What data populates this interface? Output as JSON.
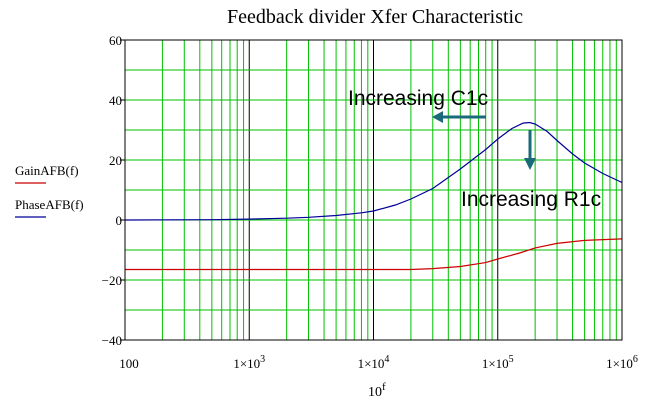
{
  "chart_data": {
    "type": "line",
    "title": "Feedback divider Xfer Characteristic",
    "xlabel": "10",
    "xlabel_superscript": "f",
    "x_scale": "log",
    "xlim": [
      100,
      1000000
    ],
    "ylim": [
      -40,
      60
    ],
    "grid": true,
    "grid_color": "#00c000",
    "x_tick_labels": [
      {
        "value": 100,
        "base": "100",
        "exp": ""
      },
      {
        "value": 1000,
        "base": "1×10",
        "exp": "3"
      },
      {
        "value": 10000,
        "base": "1×10",
        "exp": "4"
      },
      {
        "value": 100000,
        "base": "1×10",
        "exp": "5"
      },
      {
        "value": 1000000,
        "base": "1×10",
        "exp": "6"
      }
    ],
    "y_ticks": [
      60,
      40,
      20,
      0,
      -20,
      -40
    ],
    "y_tick_labels": [
      "60",
      "40",
      "20",
      "0",
      "−20",
      "−40"
    ],
    "legend_placement": "left",
    "series": [
      {
        "name": "GainAFB(f)",
        "color": "#cc0000",
        "x": [
          100,
          1000,
          10000,
          20000,
          30000,
          50000,
          80000,
          100000,
          150000,
          200000,
          300000,
          500000,
          1000000
        ],
        "y": [
          -16.5,
          -16.5,
          -16.5,
          -16.5,
          -16.2,
          -15.5,
          -14.2,
          -13.0,
          -11.0,
          -9.3,
          -7.8,
          -6.8,
          -6.3
        ]
      },
      {
        "name": "PhaseAFB(f)",
        "color": "#000099",
        "x": [
          100,
          500,
          1000,
          2000,
          3000,
          5000,
          8000,
          10000,
          15000,
          20000,
          30000,
          50000,
          80000,
          100000,
          130000,
          160000,
          180000,
          200000,
          250000,
          300000,
          400000,
          500000,
          700000,
          1000000
        ],
        "y": [
          0,
          0.1,
          0.3,
          0.6,
          0.9,
          1.5,
          2.4,
          3.0,
          5.0,
          7.0,
          10.5,
          17.0,
          23.5,
          27.0,
          30.5,
          32.3,
          32.5,
          32.0,
          29.5,
          26.5,
          22.0,
          19.0,
          15.5,
          12.5
        ]
      }
    ],
    "annotations": [
      {
        "text": "Increasing C1c",
        "arrow": "left",
        "arrow_color": "#1a6a7a"
      },
      {
        "text": "Increasing R1c",
        "arrow": "down",
        "arrow_color": "#1a6a7a"
      }
    ]
  }
}
